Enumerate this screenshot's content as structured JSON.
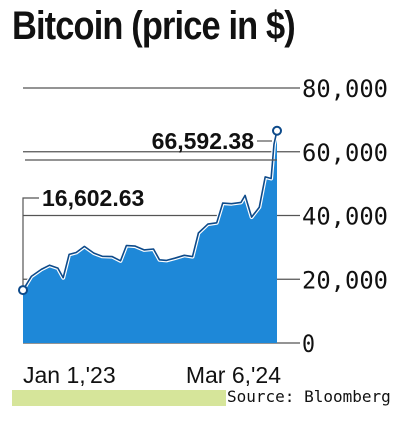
{
  "chart_data": {
    "type": "area",
    "title": "Bitcoin (price in $)",
    "source": "Source: Bloomberg",
    "ylim": [
      0,
      80000
    ],
    "y_ticks": [
      0,
      20000,
      40000,
      60000,
      80000
    ],
    "y_tick_labels": [
      "0",
      "20,000",
      "40,000",
      "60,000",
      "80,000"
    ],
    "x_tick_labels": [
      "Jan 1,'23",
      "Mar 6,'24"
    ],
    "x_tick_dates": [
      "2023-01-01",
      "2024-03-06"
    ],
    "gridlines": true,
    "annotations": [
      {
        "label": "16,602.63",
        "date": "2023-01-01",
        "value": 16602.63
      },
      {
        "label": "66,592.38",
        "date": "2024-03-06",
        "value": 66592.38
      }
    ],
    "series": [
      {
        "color": "#1e88d8",
        "points": [
          [
            "2023-01-01",
            16602.63
          ],
          [
            "2023-01-15",
            20900
          ],
          [
            "2023-02-01",
            23100
          ],
          [
            "2023-02-15",
            24400
          ],
          [
            "2023-03-01",
            23500
          ],
          [
            "2023-03-10",
            20500
          ],
          [
            "2023-03-20",
            27800
          ],
          [
            "2023-04-01",
            28400
          ],
          [
            "2023-04-15",
            30300
          ],
          [
            "2023-05-01",
            28200
          ],
          [
            "2023-05-15",
            27200
          ],
          [
            "2023-06-01",
            27100
          ],
          [
            "2023-06-15",
            25800
          ],
          [
            "2023-06-25",
            30600
          ],
          [
            "2023-07-10",
            30400
          ],
          [
            "2023-07-25",
            29200
          ],
          [
            "2023-08-10",
            29500
          ],
          [
            "2023-08-20",
            26100
          ],
          [
            "2023-09-01",
            25900
          ],
          [
            "2023-09-15",
            26600
          ],
          [
            "2023-10-01",
            27500
          ],
          [
            "2023-10-15",
            27100
          ],
          [
            "2023-10-25",
            34500
          ],
          [
            "2023-11-10",
            37300
          ],
          [
            "2023-11-25",
            37700
          ],
          [
            "2023-12-05",
            43900
          ],
          [
            "2023-12-20",
            43700
          ],
          [
            "2024-01-05",
            44100
          ],
          [
            "2024-01-12",
            46300
          ],
          [
            "2024-01-23",
            39500
          ],
          [
            "2024-02-05",
            42600
          ],
          [
            "2024-02-15",
            52100
          ],
          [
            "2024-02-25",
            51600
          ],
          [
            "2024-03-01",
            62400
          ],
          [
            "2024-03-06",
            66592.38
          ]
        ]
      }
    ]
  }
}
